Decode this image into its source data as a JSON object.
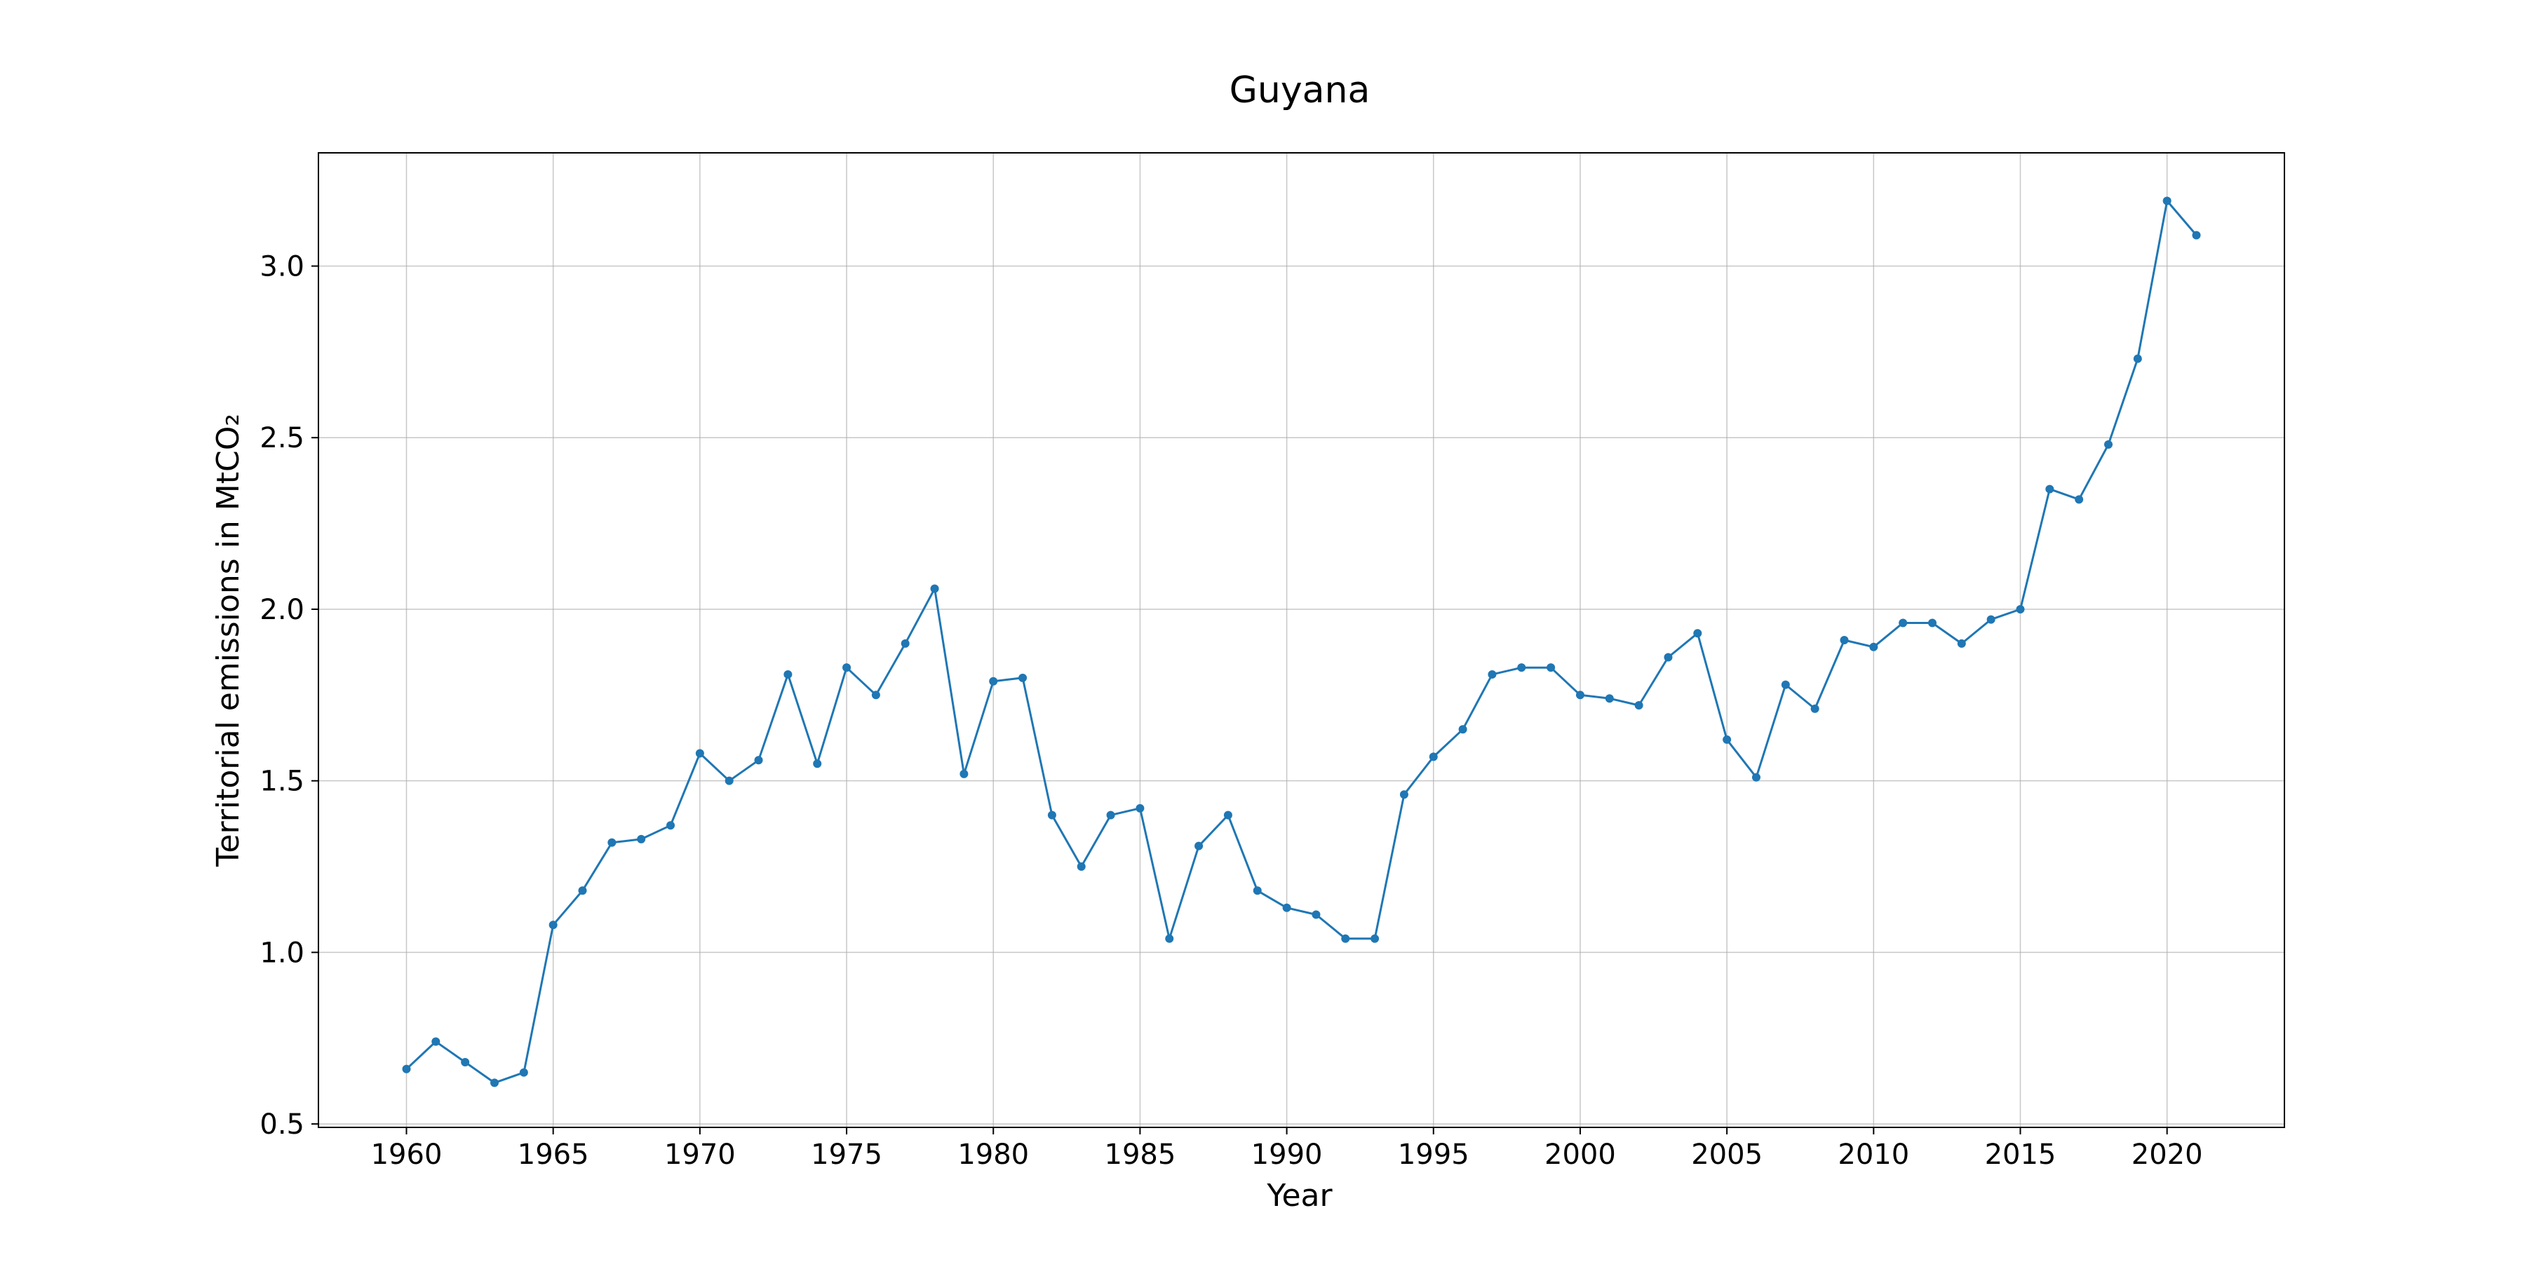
{
  "chart_data": {
    "type": "line",
    "title": "Guyana",
    "xlabel": "Year",
    "ylabel": "Territorial emissions in MtCO₂",
    "xlim": [
      1957,
      2024
    ],
    "ylim": [
      0.49,
      3.33
    ],
    "xticks": [
      1960,
      1965,
      1970,
      1975,
      1980,
      1985,
      1990,
      1995,
      2000,
      2005,
      2010,
      2015,
      2020
    ],
    "yticks": [
      0.5,
      1.0,
      1.5,
      2.0,
      2.5,
      3.0
    ],
    "ytick_labels": [
      "0.5",
      "1.0",
      "1.5",
      "2.0",
      "2.5",
      "3.0"
    ],
    "grid": true,
    "color": "#1f77b4",
    "marker": "circle",
    "x": [
      1960,
      1961,
      1962,
      1963,
      1964,
      1965,
      1966,
      1967,
      1968,
      1969,
      1970,
      1971,
      1972,
      1973,
      1974,
      1975,
      1976,
      1977,
      1978,
      1979,
      1980,
      1981,
      1982,
      1983,
      1984,
      1985,
      1986,
      1987,
      1988,
      1989,
      1990,
      1991,
      1992,
      1993,
      1994,
      1995,
      1996,
      1997,
      1998,
      1999,
      2000,
      2001,
      2002,
      2003,
      2004,
      2005,
      2006,
      2007,
      2008,
      2009,
      2010,
      2011,
      2012,
      2013,
      2014,
      2015,
      2016,
      2017,
      2018,
      2019,
      2020,
      2021
    ],
    "y": [
      0.66,
      0.74,
      0.68,
      0.62,
      0.65,
      1.08,
      1.18,
      1.32,
      1.33,
      1.37,
      1.58,
      1.5,
      1.56,
      1.81,
      1.55,
      1.83,
      1.75,
      1.9,
      2.06,
      1.52,
      1.79,
      1.8,
      1.4,
      1.25,
      1.4,
      1.42,
      1.04,
      1.31,
      1.4,
      1.18,
      1.13,
      1.11,
      1.04,
      1.04,
      1.46,
      1.57,
      1.65,
      1.81,
      1.83,
      1.83,
      1.75,
      1.74,
      1.72,
      1.86,
      1.93,
      1.62,
      1.51,
      1.78,
      1.71,
      1.91,
      1.89,
      1.96,
      1.96,
      1.9,
      1.97,
      2.0,
      2.35,
      2.32,
      2.48,
      2.73,
      3.19,
      3.09
    ]
  }
}
